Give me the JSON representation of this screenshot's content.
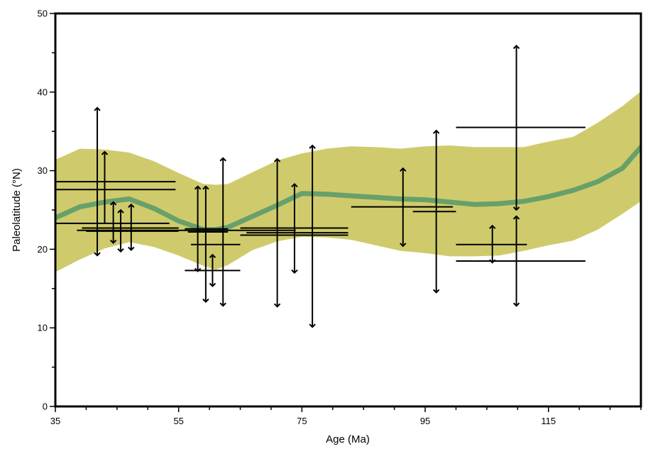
{
  "chart_data": {
    "type": "scatter",
    "title": "",
    "xlabel": "Age (Ma)",
    "ylabel": "Paleolatitude (°N)",
    "xlim": [
      35,
      130
    ],
    "ylim": [
      0,
      50
    ],
    "x_ticks": [
      35,
      55,
      75,
      95,
      115
    ],
    "x_tick_labels": [
      "35",
      "55",
      "75",
      "95",
      "115"
    ],
    "y_ticks": [
      0,
      10,
      20,
      30,
      40,
      50
    ],
    "y_tick_labels": [
      "0",
      "10",
      "20",
      "30",
      "40",
      "50"
    ],
    "grid": false,
    "colors": {
      "band": "#cfcb6c",
      "mean_line": "#68a06a",
      "points": "#000000"
    },
    "confidence_band": {
      "x": [
        35,
        39,
        43,
        47,
        51,
        55,
        59,
        61,
        63,
        67,
        71,
        75,
        79,
        83,
        87,
        91,
        95,
        99,
        103,
        107,
        111,
        115,
        119,
        123,
        127,
        130
      ],
      "upper": [
        31.4,
        32.8,
        32.7,
        32.3,
        31.2,
        29.7,
        28.3,
        28.2,
        28.3,
        29.8,
        31.3,
        32.2,
        32.8,
        33.1,
        33,
        32.8,
        33.1,
        33.2,
        33,
        33,
        33,
        33.7,
        34.3,
        36.1,
        38.2,
        40.1
      ],
      "lower": [
        17.1,
        18.7,
        20.1,
        20.9,
        20.3,
        19.2,
        17.9,
        17.4,
        18,
        19.9,
        21,
        21.6,
        21.5,
        21.2,
        20.5,
        19.8,
        19.5,
        19.1,
        19.1,
        19.2,
        19.8,
        20.5,
        21.1,
        22.5,
        24.5,
        26.1
      ]
    },
    "mean_path": {
      "x": [
        35,
        39,
        43,
        47,
        51,
        55,
        59,
        61,
        63,
        67,
        71,
        75,
        79,
        83,
        87,
        91,
        95,
        99,
        103,
        107,
        111,
        115,
        119,
        123,
        127,
        130
      ],
      "y": [
        24,
        25.4,
        26,
        26.4,
        25.2,
        23.6,
        22.5,
        22.5,
        22.8,
        24.2,
        25.6,
        27.1,
        27,
        26.8,
        26.6,
        26.4,
        26.3,
        26,
        25.7,
        25.8,
        26.1,
        26.7,
        27.5,
        28.6,
        30.3,
        33
      ]
    },
    "points": [
      {
        "age": 41.8,
        "age_min": 35,
        "age_max": 54.5,
        "lat": 28.6,
        "lat_min": null,
        "lat_max": null
      },
      {
        "age": 41.8,
        "age_min": 35,
        "age_max": 54.5,
        "lat": 27.6,
        "lat_min": 19.2,
        "lat_max": 38
      },
      {
        "age": 43,
        "age_min": 35,
        "age_max": 53.5,
        "lat": 23.3,
        "lat_min": null,
        "lat_max": 32.4
      },
      {
        "age": 44.4,
        "age_min": 39.3,
        "age_max": 55,
        "lat": 22.7,
        "lat_min": 20.8,
        "lat_max": 26
      },
      {
        "age": 45.6,
        "age_min": 38.5,
        "age_max": 55,
        "lat": 22.4,
        "lat_min": 19.7,
        "lat_max": 25
      },
      {
        "age": 47.3,
        "age_min": 40,
        "age_max": 55,
        "lat": 22.3,
        "lat_min": 19.9,
        "lat_max": 25.7
      },
      {
        "age": 58.1,
        "age_min": 56,
        "age_max": 63,
        "lat": 22.6,
        "lat_min": 17.2,
        "lat_max": 28
      },
      {
        "age": 59.4,
        "age_min": 56.5,
        "age_max": 63,
        "lat": 22.2,
        "lat_min": 13.3,
        "lat_max": 28
      },
      {
        "age": 60.5,
        "age_min": 57,
        "age_max": 65,
        "lat": 20.6,
        "lat_min": 15.3,
        "lat_max": 19.3
      },
      {
        "age": 59.9,
        "age_min": 56,
        "age_max": 65,
        "lat": 17.3,
        "lat_min": null,
        "lat_max": null
      },
      {
        "age": 62.2,
        "age_min": 55,
        "age_max": 74,
        "lat": 22.4,
        "lat_min": 12.8,
        "lat_max": 31.6
      },
      {
        "age": 71,
        "age_min": 65,
        "age_max": 82.5,
        "lat": 22.7,
        "lat_min": 12.7,
        "lat_max": 31.5
      },
      {
        "age": 73.8,
        "age_min": 65,
        "age_max": 82.5,
        "lat": 21.8,
        "lat_min": 17,
        "lat_max": 28.3
      },
      {
        "age": 76.7,
        "age_min": 66,
        "age_max": 82.5,
        "lat": 22.1,
        "lat_min": 10.1,
        "lat_max": 33.2
      },
      {
        "age": 91.4,
        "age_min": 83,
        "age_max": 99.5,
        "lat": 25.4,
        "lat_min": 20.4,
        "lat_max": 30.3
      },
      {
        "age": 96.8,
        "age_min": 93,
        "age_max": 100,
        "lat": 24.8,
        "lat_min": 14.5,
        "lat_max": 35.1
      },
      {
        "age": 109.8,
        "age_min": 100,
        "age_max": 121,
        "lat": 35.5,
        "lat_min": 25,
        "lat_max": 45.9
      },
      {
        "age": 105.9,
        "age_min": 100,
        "age_max": 111.5,
        "lat": 20.6,
        "lat_min": 18.3,
        "lat_max": 23
      },
      {
        "age": 109.8,
        "age_min": 100,
        "age_max": 121,
        "lat": 18.5,
        "lat_min": 12.8,
        "lat_max": 24.2
      }
    ]
  }
}
